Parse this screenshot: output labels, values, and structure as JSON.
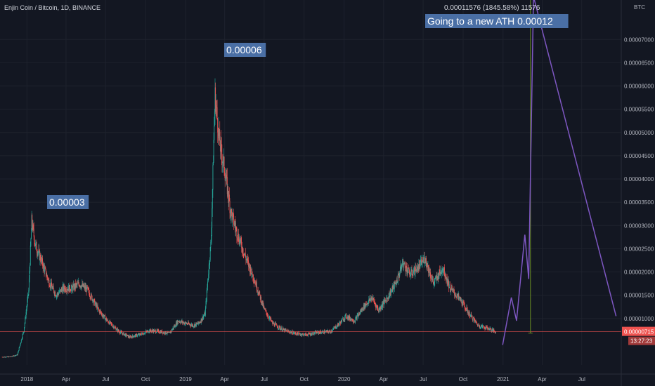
{
  "header": {
    "symbol_title": "Enjin Coin / Bitcoin, 1D, BINANCE",
    "currency_label": "BTC"
  },
  "price_badge": {
    "price": "0.00000715",
    "countdown": "13:27:23"
  },
  "annotations": {
    "peak_2018": "0.00003",
    "peak_2019": "0.00006",
    "target": "Going to a new ATH 0.00012",
    "measure": "0.00011576 (1845.58%) 11576"
  },
  "colors": {
    "background": "#131722",
    "grid": "#1e222d",
    "up": "#26a69a",
    "down": "#ef5350",
    "projection": "#7e57c2",
    "callout_bg": "#4a6fa5",
    "price_line": "#ef5350",
    "measure_line": "#6b8e23"
  },
  "chart_data": {
    "type": "candlestick",
    "title": "Enjin Coin / Bitcoin, 1D, BINANCE",
    "y_unit": "BTC",
    "ylim": [
      0,
      7.85e-05
    ],
    "y_ticks": [
      1e-05,
      1.5e-05,
      2e-05,
      2.5e-05,
      3e-05,
      3.5e-05,
      4e-05,
      4.5e-05,
      5e-05,
      5.5e-05,
      6e-05,
      6.5e-05,
      7e-05
    ],
    "y_tick_labels": [
      "0.00001000",
      "0.00001500",
      "0.00002000",
      "0.00002500",
      "0.00003000",
      "0.00003500",
      "0.00004000",
      "0.00004500",
      "0.00005000",
      "0.00005500",
      "0.00006000",
      "0.00006500",
      "0.00007000"
    ],
    "x_range": [
      "2017-10-31",
      "2021-09-30"
    ],
    "x_ticks": [
      "2018-01-01",
      "2018-04-01",
      "2018-07-01",
      "2018-10-01",
      "2019-01-01",
      "2019-04-01",
      "2019-07-01",
      "2019-10-01",
      "2020-01-01",
      "2020-04-01",
      "2020-07-01",
      "2020-10-01",
      "2021-01-01",
      "2021-04-01",
      "2021-07-01"
    ],
    "x_tick_labels": [
      "2018",
      "Apr",
      "Jul",
      "Oct",
      "2019",
      "Apr",
      "Jul",
      "Oct",
      "2020",
      "Apr",
      "Jul",
      "Oct",
      "2021",
      "Apr",
      "Jul"
    ],
    "price_path": [
      [
        "2017-11-05",
        1.7e-06
      ],
      [
        "2017-11-25",
        1.8e-06
      ],
      [
        "2017-12-10",
        2.2e-06
      ],
      [
        "2017-12-25",
        7.5e-06
      ],
      [
        "2018-01-05",
        1.6e-05
      ],
      [
        "2018-01-12",
        3.1e-05
      ],
      [
        "2018-01-20",
        2.6e-05
      ],
      [
        "2018-02-05",
        2.2e-05
      ],
      [
        "2018-02-20",
        1.8e-05
      ],
      [
        "2018-03-10",
        1.5e-05
      ],
      [
        "2018-03-25",
        1.65e-05
      ],
      [
        "2018-04-15",
        1.65e-05
      ],
      [
        "2018-05-01",
        1.75e-05
      ],
      [
        "2018-05-20",
        1.62e-05
      ],
      [
        "2018-06-15",
        1.18e-05
      ],
      [
        "2018-07-05",
        9.5e-06
      ],
      [
        "2018-08-01",
        7.2e-06
      ],
      [
        "2018-08-25",
        6e-06
      ],
      [
        "2018-09-20",
        6.6e-06
      ],
      [
        "2018-10-10",
        7.4e-06
      ],
      [
        "2018-11-01",
        7.2e-06
      ],
      [
        "2018-11-25",
        6.8e-06
      ],
      [
        "2018-12-15",
        9.5e-06
      ],
      [
        "2018-12-31",
        9e-06
      ],
      [
        "2019-01-20",
        8.5e-06
      ],
      [
        "2019-02-01",
        9e-06
      ],
      [
        "2019-02-15",
        1.1e-05
      ],
      [
        "2019-03-01",
        2.7e-05
      ],
      [
        "2019-03-06",
        4.5e-05
      ],
      [
        "2019-03-10",
        5.8e-05
      ],
      [
        "2019-03-20",
        4.8e-05
      ],
      [
        "2019-04-01",
        4.2e-05
      ],
      [
        "2019-04-15",
        3.3e-05
      ],
      [
        "2019-05-01",
        2.8e-05
      ],
      [
        "2019-05-20",
        2.3e-05
      ],
      [
        "2019-06-10",
        1.8e-05
      ],
      [
        "2019-07-01",
        1.2e-05
      ],
      [
        "2019-07-20",
        9e-06
      ],
      [
        "2019-08-15",
        7.5e-06
      ],
      [
        "2019-09-10",
        6.8e-06
      ],
      [
        "2019-10-05",
        6.5e-06
      ],
      [
        "2019-11-01",
        7e-06
      ],
      [
        "2019-12-01",
        7.2e-06
      ],
      [
        "2019-12-20",
        8.8e-06
      ],
      [
        "2020-01-05",
        1.05e-05
      ],
      [
        "2020-01-25",
        9.5e-06
      ],
      [
        "2020-02-15",
        1.25e-05
      ],
      [
        "2020-03-05",
        1.45e-05
      ],
      [
        "2020-03-20",
        1.18e-05
      ],
      [
        "2020-04-10",
        1.45e-05
      ],
      [
        "2020-05-01",
        1.8e-05
      ],
      [
        "2020-05-15",
        2.2e-05
      ],
      [
        "2020-06-01",
        1.95e-05
      ],
      [
        "2020-06-20",
        2.1e-05
      ],
      [
        "2020-07-05",
        2.3e-05
      ],
      [
        "2020-07-25",
        1.75e-05
      ],
      [
        "2020-08-15",
        2.1e-05
      ],
      [
        "2020-09-01",
        1.65e-05
      ],
      [
        "2020-09-25",
        1.4e-05
      ],
      [
        "2020-10-15",
        1.1e-05
      ],
      [
        "2020-11-05",
        8.5e-06
      ],
      [
        "2020-12-01",
        7.8e-06
      ],
      [
        "2020-12-15",
        7.1e-06
      ]
    ],
    "projection": [
      [
        "2020-12-31",
        4.3e-06
      ],
      [
        "2021-01-20",
        1.45e-05
      ],
      [
        "2021-02-01",
        9.5e-06
      ],
      [
        "2021-02-20",
        2.8e-05
      ],
      [
        "2021-03-01",
        1.85e-05
      ],
      [
        "2021-03-12",
        0.00012
      ],
      [
        "2021-09-18",
        1.05e-05
      ]
    ],
    "peak_labels": [
      {
        "date": "2018-01-12",
        "value": 3.4e-05,
        "text": "0.00003"
      },
      {
        "date": "2019-03-10",
        "value": 6.4e-05,
        "text": "0.00006"
      }
    ],
    "measure_from": [
      "2021-03-05",
      7.3e-06
    ],
    "current_price": 7.15e-06
  }
}
